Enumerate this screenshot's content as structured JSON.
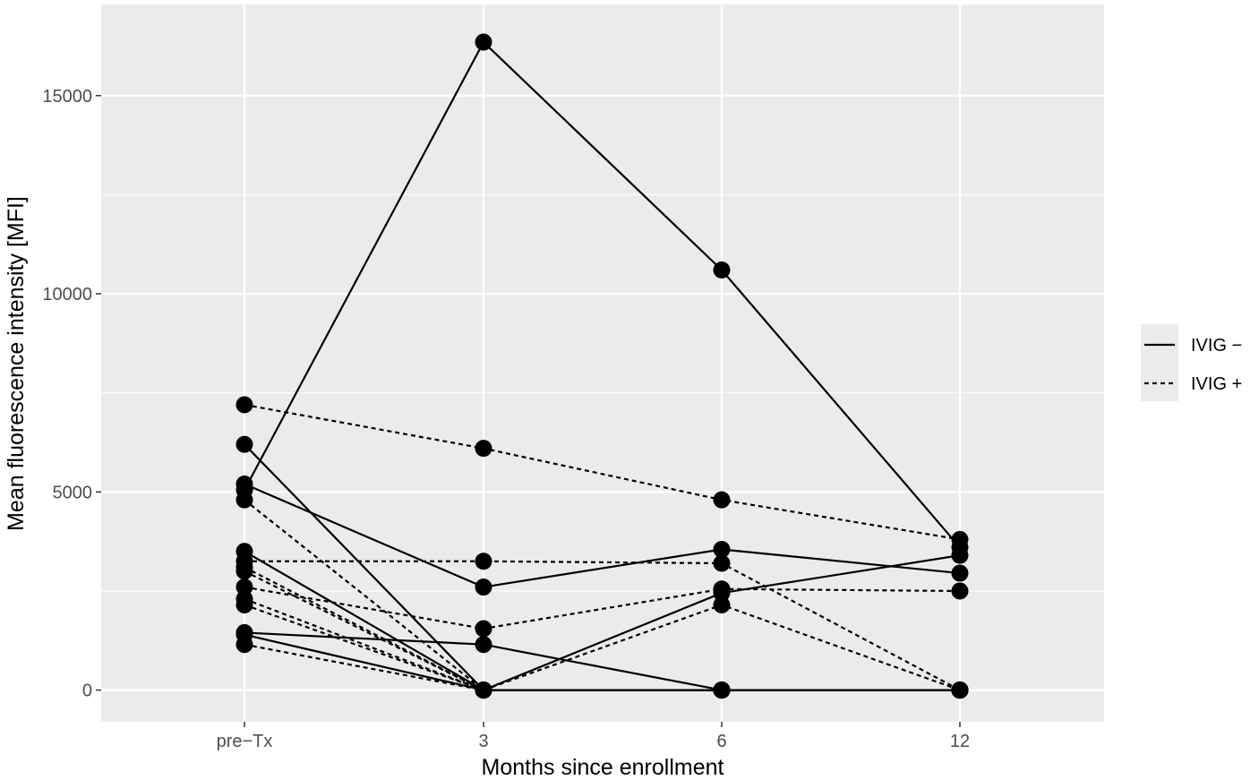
{
  "chart_data": {
    "type": "line",
    "title": "",
    "xlabel": "Months since enrollment",
    "ylabel": "Mean fluorescence intensity [MFI]",
    "categories": [
      "pre−Tx",
      "3",
      "6",
      "12"
    ],
    "ylim": [
      -800,
      17300
    ],
    "yticks": [
      0,
      5000,
      10000,
      15000
    ],
    "grid": true,
    "legend_position": "right",
    "legend": [
      {
        "label": "IVIG −",
        "style": "solid"
      },
      {
        "label": "IVIG +",
        "style": "dashed"
      }
    ],
    "series": [
      {
        "group": "IVIG −",
        "values": [
          5050,
          16350,
          10600,
          3600
        ]
      },
      {
        "group": "IVIG −",
        "values": [
          6200,
          0,
          0,
          0
        ]
      },
      {
        "group": "IVIG −",
        "values": [
          5200,
          2600,
          3550,
          2950
        ]
      },
      {
        "group": "IVIG −",
        "values": [
          3500,
          0,
          2450,
          3400
        ]
      },
      {
        "group": "IVIG −",
        "values": [
          1450,
          1150,
          0,
          0
        ]
      },
      {
        "group": "IVIG −",
        "values": [
          1400,
          0,
          0,
          0
        ]
      },
      {
        "group": "IVIG +",
        "values": [
          7200,
          6100,
          4800,
          3800
        ]
      },
      {
        "group": "IVIG +",
        "values": [
          3250,
          3250,
          3200,
          0
        ]
      },
      {
        "group": "IVIG +",
        "values": [
          2600,
          1550,
          2550,
          2500
        ]
      },
      {
        "group": "IVIG +",
        "values": [
          4800,
          0,
          2150,
          0
        ]
      },
      {
        "group": "IVIG +",
        "values": [
          3100,
          0,
          0,
          0
        ]
      },
      {
        "group": "IVIG +",
        "values": [
          3000,
          0,
          0,
          0
        ]
      },
      {
        "group": "IVIG +",
        "values": [
          2300,
          0,
          0,
          0
        ]
      },
      {
        "group": "IVIG +",
        "values": [
          2150,
          0,
          0,
          0
        ]
      },
      {
        "group": "IVIG +",
        "values": [
          1150,
          0,
          0,
          0
        ]
      }
    ]
  }
}
